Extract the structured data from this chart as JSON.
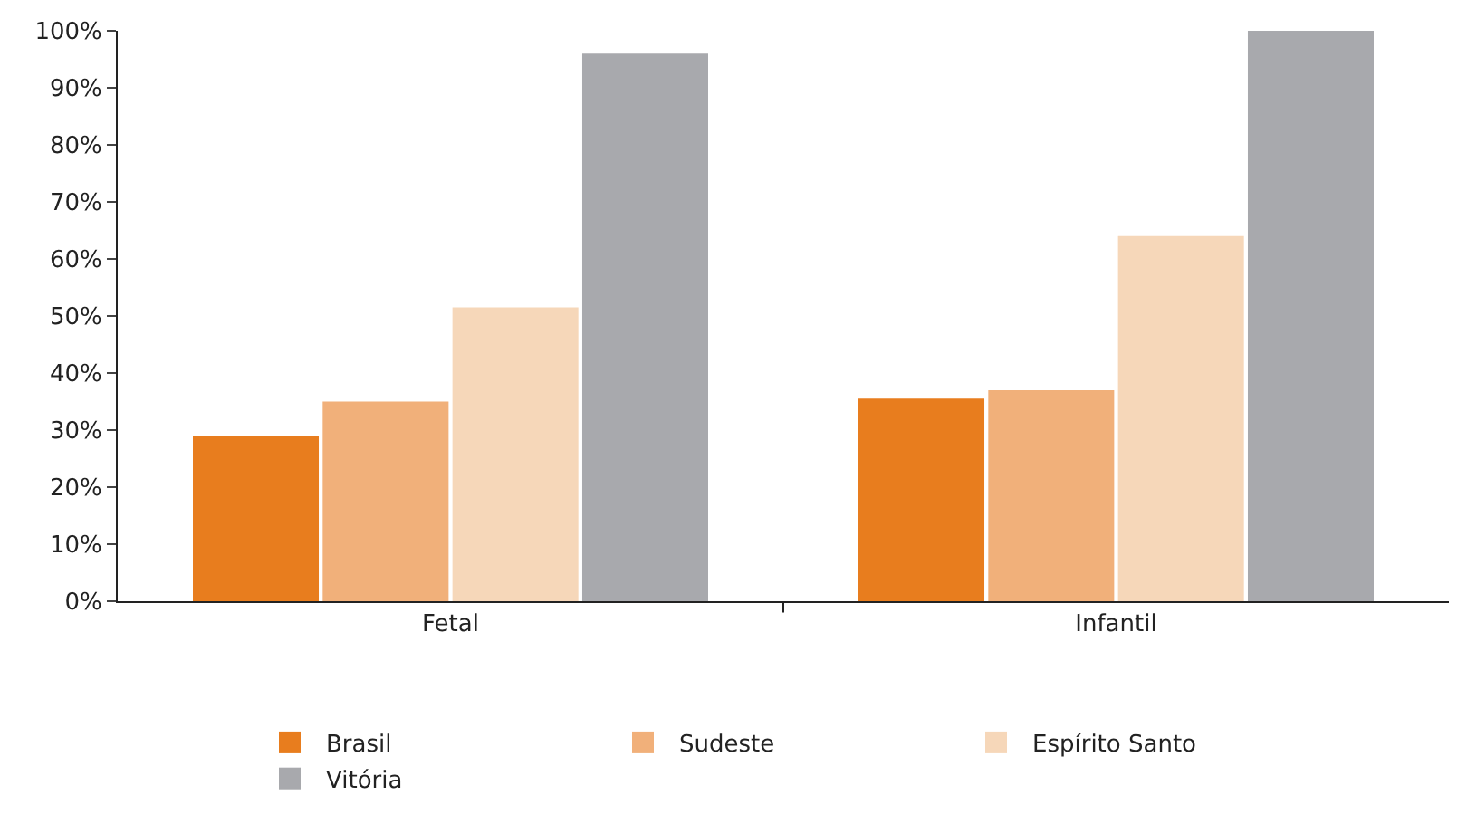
{
  "chart_data": {
    "type": "bar",
    "categories": [
      "Fetal",
      "Infantil"
    ],
    "series": [
      {
        "name": "Brasil",
        "color": "#e87d1e",
        "values": [
          29,
          35.5
        ]
      },
      {
        "name": "Sudeste",
        "color": "#f1b07a",
        "values": [
          35,
          37
        ]
      },
      {
        "name": "Espírito Santo",
        "color": "#f6d7b9",
        "values": [
          51.5,
          64
        ]
      },
      {
        "name": "Vitória",
        "color": "#a8a9ad",
        "values": [
          96,
          100
        ]
      }
    ],
    "ylim": [
      0,
      100
    ],
    "yticks": [
      {
        "value": 0,
        "label": "0%"
      },
      {
        "value": 10,
        "label": "10%"
      },
      {
        "value": 20,
        "label": "20%"
      },
      {
        "value": 30,
        "label": "30%"
      },
      {
        "value": 40,
        "label": "40%"
      },
      {
        "value": 50,
        "label": "50%"
      },
      {
        "value": 60,
        "label": "60%"
      },
      {
        "value": 70,
        "label": "70%"
      },
      {
        "value": 80,
        "label": "80%"
      },
      {
        "value": 90,
        "label": "90%"
      },
      {
        "value": 100,
        "label": "100%"
      }
    ],
    "legend": "bottom"
  }
}
